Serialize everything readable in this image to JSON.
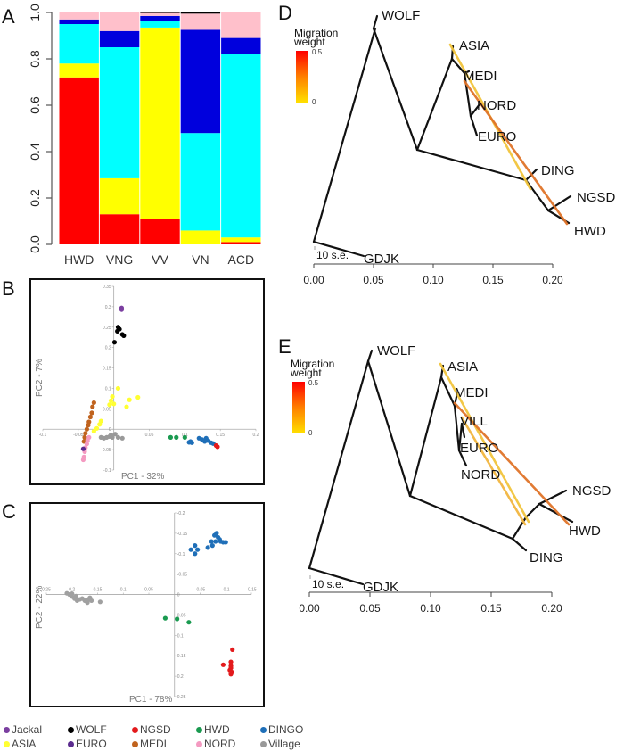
{
  "panels": {
    "A": "A",
    "B": "B",
    "C": "C",
    "D": "D",
    "E": "E"
  },
  "chart_data": [
    {
      "id": "A",
      "type": "bar",
      "stacked": true,
      "title": "",
      "xlabel": "",
      "ylabel": "",
      "ylim": [
        0,
        1
      ],
      "yticks": [
        "0.0",
        "0.2",
        "0.4",
        "0.6",
        "0.8",
        "1.0"
      ],
      "categories": [
        "HWD",
        "VNG",
        "VV",
        "VN",
        "ACD"
      ],
      "series": [
        {
          "name": "red",
          "color": "#ff0000",
          "values": [
            0.72,
            0.13,
            0.11,
            0.0,
            0.01
          ]
        },
        {
          "name": "yellow",
          "color": "#ffff00",
          "values": [
            0.06,
            0.155,
            0.825,
            0.06,
            0.02
          ]
        },
        {
          "name": "cyan",
          "color": "#00ffff",
          "values": [
            0.17,
            0.565,
            0.03,
            0.42,
            0.79
          ]
        },
        {
          "name": "blue",
          "color": "#0000dd",
          "values": [
            0.02,
            0.07,
            0.02,
            0.445,
            0.07
          ]
        },
        {
          "name": "pink",
          "color": "#ffc0cb",
          "values": [
            0.03,
            0.08,
            0.013,
            0.07,
            0.11
          ]
        },
        {
          "name": "black",
          "color": "#000000",
          "values": [
            0.0,
            0.0,
            0.002,
            0.005,
            0.0
          ]
        }
      ]
    },
    {
      "id": "B",
      "type": "scatter",
      "xlabel": "PC1 - 32%",
      "ylabel": "PC2 - 7%",
      "xlim": [
        -0.1,
        0.2
      ],
      "ylim": [
        -0.1,
        0.35
      ],
      "xticks": [
        "-0.1",
        "-0.05",
        "0.05",
        "0.1",
        "0.15",
        "0.2"
      ],
      "xtick_values": [
        -0.1,
        -0.05,
        0.05,
        0.1,
        0.15,
        0.2
      ],
      "yticks": [
        "-0.1",
        "-0.05",
        "0",
        "0.05",
        "0.1",
        "0.15",
        "0.2",
        "0.25",
        "0.3",
        "0.35"
      ],
      "ytick_values": [
        -0.1,
        -0.05,
        0,
        0.05,
        0.1,
        0.15,
        0.2,
        0.25,
        0.3,
        0.35
      ],
      "series": [
        {
          "name": "Jackal",
          "color": "#7b3fa0",
          "points": [
            [
              0.011,
              0.297
            ],
            [
              0.011,
              0.293
            ]
          ]
        },
        {
          "name": "WOLF",
          "color": "#000000",
          "points": [
            [
              0.006,
              0.25
            ],
            [
              0.008,
              0.245
            ],
            [
              0.005,
              0.24
            ],
            [
              0.012,
              0.232
            ],
            [
              0.014,
              0.229
            ],
            [
              0.001,
              0.213
            ]
          ]
        },
        {
          "name": "ASIA",
          "color": "#ffff33",
          "points": [
            [
              -0.002,
              0.08
            ],
            [
              0.006,
              0.1
            ],
            [
              -0.004,
              0.07
            ],
            [
              -0.006,
              0.06
            ],
            [
              0.0,
              0.062
            ],
            [
              0.022,
              0.072
            ],
            [
              0.034,
              0.078
            ],
            [
              0.018,
              0.055
            ],
            [
              -0.018,
              0.02
            ],
            [
              -0.02,
              0.012
            ],
            [
              -0.024,
              0.002
            ],
            [
              -0.028,
              -0.005
            ]
          ]
        },
        {
          "name": "MEDI",
          "color": "#c0631e",
          "points": [
            [
              -0.028,
              0.065
            ],
            [
              -0.03,
              0.055
            ],
            [
              -0.031,
              0.04
            ],
            [
              -0.033,
              0.03
            ],
            [
              -0.035,
              0.018
            ],
            [
              -0.036,
              0.01
            ],
            [
              -0.038,
              0.0
            ],
            [
              -0.04,
              -0.01
            ],
            [
              -0.041,
              -0.02
            ],
            [
              -0.042,
              -0.03
            ]
          ]
        },
        {
          "name": "NORD",
          "color": "#f49ac1",
          "points": [
            [
              -0.035,
              -0.02
            ],
            [
              -0.037,
              -0.028
            ],
            [
              -0.038,
              -0.036
            ],
            [
              -0.04,
              -0.045
            ],
            [
              -0.041,
              -0.055
            ],
            [
              -0.042,
              -0.068
            ],
            [
              -0.043,
              -0.075
            ]
          ]
        },
        {
          "name": "EURO",
          "color": "#5b2c8f",
          "points": [
            [
              -0.043,
              -0.048
            ]
          ]
        },
        {
          "name": "Village",
          "color": "#999999",
          "points": [
            [
              -0.018,
              -0.02
            ],
            [
              -0.014,
              -0.022
            ],
            [
              -0.01,
              -0.02
            ],
            [
              -0.006,
              -0.018
            ],
            [
              -0.002,
              -0.02
            ],
            [
              0.002,
              -0.012
            ],
            [
              0.006,
              -0.02
            ],
            [
              -0.004,
              -0.014
            ],
            [
              0.012,
              -0.022
            ]
          ]
        },
        {
          "name": "HWD",
          "color": "#1a9a50",
          "points": [
            [
              0.08,
              -0.02
            ],
            [
              0.088,
              -0.02
            ],
            [
              0.1,
              -0.02
            ]
          ]
        },
        {
          "name": "DINGO",
          "color": "#1f6fb8",
          "points": [
            [
              0.106,
              -0.032
            ],
            [
              0.11,
              -0.033
            ],
            [
              0.12,
              -0.022
            ],
            [
              0.124,
              -0.025
            ],
            [
              0.13,
              -0.022
            ],
            [
              0.133,
              -0.028
            ],
            [
              0.128,
              -0.03
            ],
            [
              0.14,
              -0.035
            ],
            [
              0.137,
              -0.033
            ],
            [
              0.108,
              -0.03
            ]
          ]
        },
        {
          "name": "NGSD",
          "color": "#e31a1c",
          "points": [
            [
              0.144,
              -0.04
            ],
            [
              0.146,
              -0.043
            ]
          ]
        }
      ]
    },
    {
      "id": "C",
      "type": "scatter",
      "xlabel": "PC1 - 78%",
      "ylabel": "PC2 - 22%",
      "x_reversed": true,
      "y_reversed": true,
      "xlim": [
        0.25,
        -0.15
      ],
      "ylim": [
        -0.2,
        0.25
      ],
      "xticks": [
        "0.25",
        "0.2",
        "0.15",
        "0.1",
        "0.05",
        "-0.05",
        "-0.1",
        "-0.15"
      ],
      "xtick_values": [
        0.25,
        0.2,
        0.15,
        0.1,
        0.05,
        -0.05,
        -0.1,
        -0.15
      ],
      "yticks": [
        "-0.2",
        "-0.15",
        "-0.1",
        "-0.05",
        "0",
        "0.05",
        "0.1",
        "0.15",
        "0.2",
        "0.25"
      ],
      "ytick_values": [
        -0.2,
        -0.15,
        -0.1,
        -0.05,
        0,
        0.05,
        0.1,
        0.15,
        0.2,
        0.25
      ],
      "series": [
        {
          "name": "Village",
          "color": "#a0a0a0",
          "points": [
            [
              0.21,
              -0.003
            ],
            [
              0.205,
              0.0
            ],
            [
              0.2,
              0.005
            ],
            [
              0.195,
              0.01
            ],
            [
              0.19,
              0.015
            ],
            [
              0.185,
              0.012
            ],
            [
              0.18,
              0.01
            ],
            [
              0.175,
              0.015
            ],
            [
              0.17,
              0.02
            ],
            [
              0.168,
              0.012
            ],
            [
              0.165,
              0.008
            ],
            [
              0.162,
              0.015
            ],
            [
              0.145,
              0.018
            ],
            [
              0.2,
              -0.002
            ],
            [
              0.192,
              0.004
            ]
          ]
        },
        {
          "name": "HWD",
          "color": "#1a9a50",
          "points": [
            [
              0.018,
              0.058
            ],
            [
              -0.005,
              0.06
            ],
            [
              -0.028,
              0.068
            ]
          ]
        },
        {
          "name": "DINGO",
          "color": "#1f6fb8",
          "points": [
            [
              -0.032,
              -0.11
            ],
            [
              -0.04,
              -0.12
            ],
            [
              -0.045,
              -0.11
            ],
            [
              -0.04,
              -0.1
            ],
            [
              -0.065,
              -0.115
            ],
            [
              -0.072,
              -0.13
            ],
            [
              -0.078,
              -0.145
            ],
            [
              -0.082,
              -0.15
            ],
            [
              -0.085,
              -0.14
            ],
            [
              -0.088,
              -0.135
            ],
            [
              -0.09,
              -0.13
            ],
            [
              -0.095,
              -0.128
            ],
            [
              -0.1,
              -0.128
            ],
            [
              -0.074,
              -0.12
            ],
            [
              -0.08,
              -0.13
            ]
          ]
        },
        {
          "name": "NGSD",
          "color": "#e31a1c",
          "points": [
            [
              -0.113,
              0.135
            ],
            [
              -0.095,
              0.172
            ],
            [
              -0.11,
              0.165
            ],
            [
              -0.11,
              0.175
            ],
            [
              -0.11,
              0.18
            ],
            [
              -0.108,
              0.185
            ],
            [
              -0.112,
              0.19
            ],
            [
              -0.11,
              0.195
            ]
          ]
        }
      ]
    },
    {
      "id": "D",
      "type": "tree",
      "xlim": [
        0,
        0.2
      ],
      "xticks": [
        "0.00",
        "0.05",
        "0.10",
        "0.15",
        "0.20"
      ],
      "scale_label": "10 s.e.",
      "legend_title": [
        "Migration",
        "weight"
      ],
      "legend_range": [
        "0.5",
        "0"
      ],
      "leaves": [
        "WOLF",
        "ASIA",
        "MEDI",
        "NORD",
        "EURO",
        "DING",
        "NGSD",
        "HWD",
        "GDJK"
      ],
      "migration_edges": [
        {
          "from": "ASIA",
          "to": "DING-NGSD branch",
          "weight": 0.15
        },
        {
          "from": "ASIA-MEDI branch",
          "to": "HWD",
          "weight": 0.3
        }
      ]
    },
    {
      "id": "E",
      "type": "tree",
      "xlim": [
        0,
        0.2
      ],
      "xticks": [
        "0.00",
        "0.05",
        "0.10",
        "0.15",
        "0.20"
      ],
      "scale_label": "10 s.e.",
      "legend_title": [
        "Migration",
        "weight"
      ],
      "legend_range": [
        "0.5",
        "0"
      ],
      "leaves": [
        "WOLF",
        "ASIA",
        "MEDI",
        "VILL",
        "EURO",
        "NORD",
        "NGSD",
        "HWD",
        "DING",
        "GDJK"
      ],
      "migration_edges": [
        {
          "from": "ASIA",
          "to": "NGSD-HWD branch",
          "weight": 0.15
        },
        {
          "from": "VILL",
          "to": "NGSD-HWD branch",
          "weight": 0.12
        },
        {
          "from": "ASIA-MEDI branch",
          "to": "HWD",
          "weight": 0.32
        }
      ]
    }
  ],
  "legend": [
    [
      {
        "label": "Jackal",
        "color": "#7b3fa0"
      },
      {
        "label": "WOLF",
        "color": "#000000"
      },
      {
        "label": "NGSD",
        "color": "#e31a1c"
      },
      {
        "label": "HWD",
        "color": "#1a9a50"
      },
      {
        "label": "DINGO",
        "color": "#1f6fb8"
      }
    ],
    [
      {
        "label": "ASIA",
        "color": "#ffff33"
      },
      {
        "label": "EURO",
        "color": "#5b2c8f"
      },
      {
        "label": "MEDI",
        "color": "#c0631e"
      },
      {
        "label": "NORD",
        "color": "#f49ac1"
      },
      {
        "label": "Village",
        "color": "#999999"
      }
    ]
  ]
}
